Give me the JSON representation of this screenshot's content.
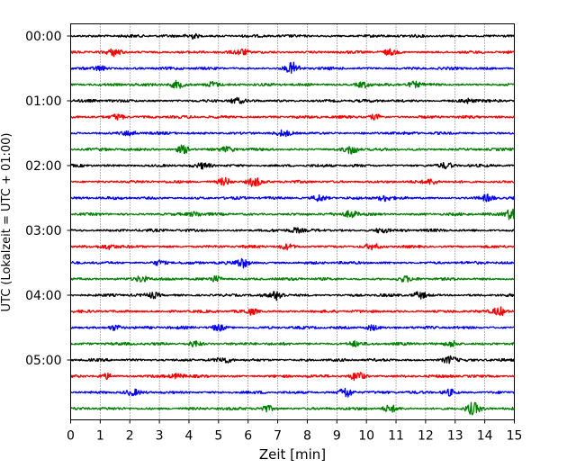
{
  "chart_data": {
    "type": "line",
    "title": "",
    "xlabel": "Zeit  [min]",
    "ylabel": "UTC (Lokalzeit = UTC + 01:00)",
    "xlim": [
      0,
      15
    ],
    "x_ticks": [
      0,
      1,
      2,
      3,
      4,
      5,
      6,
      7,
      8,
      9,
      10,
      11,
      12,
      13,
      14,
      15
    ],
    "y_tick_labels": [
      "00:00",
      "01:00",
      "02:00",
      "03:00",
      "04:00",
      "05:00"
    ],
    "grid": "vertical dotted at each minute",
    "trace_interval_min": 15,
    "trace_count": 24,
    "trace_colors": [
      "#000000",
      "#ff0000",
      "#0000ff",
      "#008000"
    ],
    "traces": [
      {
        "start": "00:00",
        "bursts": [
          [
            4.1,
            0.9
          ]
        ]
      },
      {
        "start": "00:15",
        "bursts": [
          [
            1.5,
            1.1
          ],
          [
            5.8,
            0.9
          ],
          [
            10.8,
            0.8
          ]
        ]
      },
      {
        "start": "00:30",
        "bursts": [
          [
            7.5,
            1.8
          ],
          [
            1.0,
            0.8
          ]
        ]
      },
      {
        "start": "00:45",
        "bursts": [
          [
            3.6,
            1.1
          ],
          [
            4.8,
            1.0
          ],
          [
            9.9,
            1.0
          ],
          [
            11.6,
            0.9
          ]
        ]
      },
      {
        "start": "01:00",
        "bursts": [
          [
            5.6,
            0.8
          ],
          [
            13.4,
            0.8
          ]
        ]
      },
      {
        "start": "01:15",
        "bursts": [
          [
            1.6,
            1.0
          ],
          [
            10.3,
            0.8
          ]
        ]
      },
      {
        "start": "01:30",
        "bursts": [
          [
            2.0,
            0.7
          ],
          [
            7.2,
            0.8
          ]
        ]
      },
      {
        "start": "01:45",
        "bursts": [
          [
            3.8,
            1.3
          ],
          [
            9.5,
            1.4
          ],
          [
            5.3,
            0.7
          ]
        ]
      },
      {
        "start": "02:00",
        "bursts": [
          [
            4.5,
            0.8
          ],
          [
            12.7,
            0.8
          ]
        ]
      },
      {
        "start": "02:15",
        "bursts": [
          [
            5.2,
            1.3
          ],
          [
            6.2,
            1.4
          ],
          [
            12.2,
            0.8
          ]
        ]
      },
      {
        "start": "02:30",
        "bursts": [
          [
            8.4,
            1.1
          ],
          [
            10.6,
            0.9
          ],
          [
            14.1,
            1.0
          ]
        ]
      },
      {
        "start": "02:45",
        "bursts": [
          [
            9.5,
            1.2
          ],
          [
            14.9,
            1.8
          ],
          [
            4.2,
            0.8
          ]
        ]
      },
      {
        "start": "03:00",
        "bursts": [
          [
            7.6,
            0.8
          ],
          [
            10.5,
            0.8
          ]
        ]
      },
      {
        "start": "03:15",
        "bursts": [
          [
            1.3,
            0.8
          ],
          [
            7.3,
            0.8
          ],
          [
            10.2,
            0.7
          ]
        ]
      },
      {
        "start": "03:30",
        "bursts": [
          [
            5.8,
            1.6
          ],
          [
            3.0,
            0.8
          ]
        ]
      },
      {
        "start": "03:45",
        "bursts": [
          [
            2.4,
            1.0
          ],
          [
            4.9,
            0.9
          ],
          [
            11.3,
            0.8
          ]
        ]
      },
      {
        "start": "04:00",
        "bursts": [
          [
            7.0,
            1.5
          ],
          [
            11.8,
            1.0
          ],
          [
            2.8,
            0.8
          ]
        ]
      },
      {
        "start": "04:15",
        "bursts": [
          [
            6.1,
            0.9
          ],
          [
            14.5,
            1.3
          ]
        ]
      },
      {
        "start": "04:30",
        "bursts": [
          [
            1.5,
            0.9
          ],
          [
            5.0,
            1.0
          ],
          [
            10.2,
            0.9
          ]
        ]
      },
      {
        "start": "04:45",
        "bursts": [
          [
            4.2,
            1.0
          ],
          [
            9.6,
            0.8
          ],
          [
            12.9,
            1.0
          ]
        ]
      },
      {
        "start": "05:00",
        "bursts": [
          [
            5.2,
            0.8
          ],
          [
            12.8,
            1.2
          ]
        ]
      },
      {
        "start": "05:15",
        "bursts": [
          [
            1.2,
            0.9
          ],
          [
            9.7,
            1.5
          ],
          [
            3.6,
            0.8
          ]
        ]
      },
      {
        "start": "05:30",
        "bursts": [
          [
            9.3,
            1.8
          ],
          [
            12.8,
            1.0
          ],
          [
            2.1,
            0.8
          ]
        ]
      },
      {
        "start": "05:45",
        "bursts": [
          [
            13.6,
            1.9
          ],
          [
            6.6,
            1.0
          ],
          [
            10.8,
            1.1
          ]
        ]
      }
    ]
  }
}
